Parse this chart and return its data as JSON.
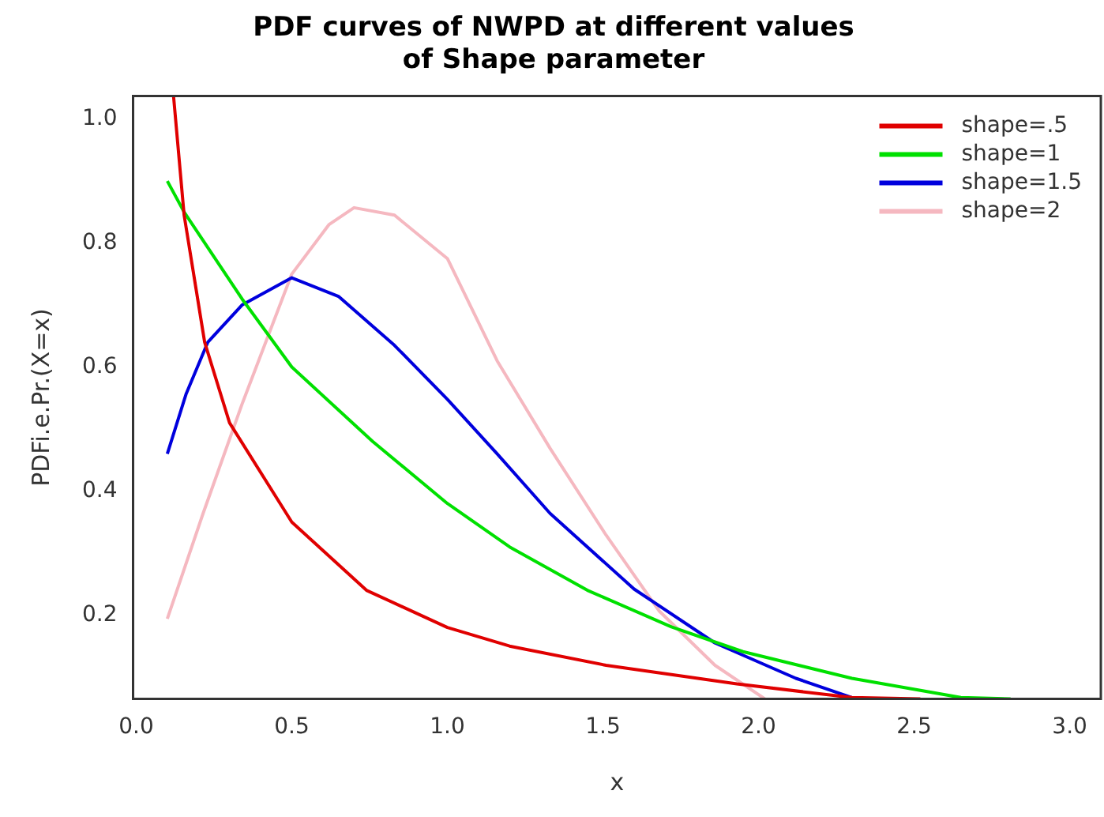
{
  "chart_data": {
    "type": "line",
    "title": [
      "PDF curves of NWPD at different values",
      "of Shape parameter"
    ],
    "xlabel": "x",
    "ylabel": "PDFi.e.Pr.(X=x)",
    "xlim": [
      -0.01,
      3.1
    ],
    "ylim": [
      0.065,
      1.037
    ],
    "xticks": [
      {
        "value": 0,
        "label": "0.0"
      },
      0.5,
      {
        "value": 1,
        "label": "1.0"
      },
      1.5,
      {
        "value": 2,
        "label": "2.0"
      },
      2.5,
      {
        "value": 3,
        "label": "3.0"
      }
    ],
    "yticks": [
      0.2,
      0.4,
      0.6,
      0.8,
      {
        "value": 1,
        "label": "1.0"
      }
    ],
    "grid": false,
    "legend": "top right",
    "marker": "none",
    "line_style": "solid",
    "series": [
      {
        "name": "shape=.5",
        "color": "#e00000",
        "x": [
          0.12,
          0.154,
          0.22,
          0.3,
          0.5,
          0.74,
          1.0,
          1.2,
          1.51,
          1.93,
          2.3,
          2.52
        ],
        "values": [
          1.037,
          0.845,
          0.64,
          0.51,
          0.35,
          0.24,
          0.18,
          0.15,
          0.119,
          0.089,
          0.067,
          0.065
        ]
      },
      {
        "name": "shape=1",
        "color": "#00e000",
        "x": [
          0.1,
          0.154,
          0.34,
          0.5,
          0.76,
          1.0,
          1.2,
          1.45,
          1.72,
          1.95,
          2.3,
          2.65,
          2.81
        ],
        "values": [
          0.9,
          0.85,
          0.71,
          0.6,
          0.48,
          0.38,
          0.31,
          0.24,
          0.181,
          0.141,
          0.098,
          0.067,
          0.065
        ]
      },
      {
        "name": "shape=1.5",
        "color": "#0000dd",
        "x": [
          0.1,
          0.16,
          0.23,
          0.34,
          0.5,
          0.65,
          0.83,
          1.0,
          1.16,
          1.33,
          1.6,
          1.86,
          2.12,
          2.3
        ],
        "values": [
          0.46,
          0.556,
          0.64,
          0.7,
          0.744,
          0.714,
          0.635,
          0.548,
          0.46,
          0.364,
          0.242,
          0.155,
          0.098,
          0.067
        ]
      },
      {
        "name": "shape=2",
        "color": "#f5b8c0",
        "x": [
          0.1,
          0.215,
          0.34,
          0.5,
          0.62,
          0.7,
          0.83,
          1.0,
          1.16,
          1.33,
          1.51,
          1.68,
          1.86,
          2.02
        ],
        "values": [
          0.194,
          0.364,
          0.54,
          0.75,
          0.83,
          0.857,
          0.845,
          0.775,
          0.61,
          0.469,
          0.329,
          0.207,
          0.119,
          0.065
        ]
      }
    ]
  }
}
